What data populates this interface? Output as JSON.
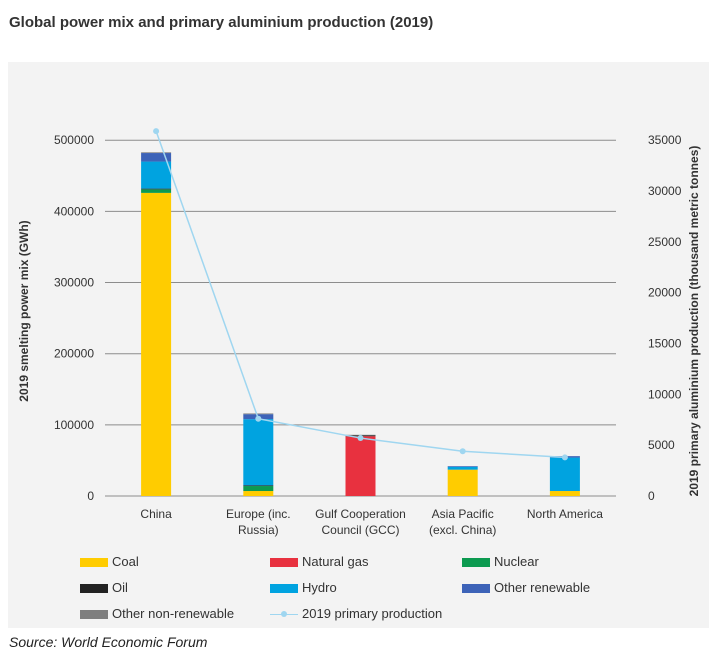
{
  "title": "Global power mix and primary aluminium production (2019)",
  "source": "Source: World Economic Forum",
  "chart_data": {
    "type": "bar",
    "stacked": true,
    "categories": [
      "China",
      "Europe (inc. Russia)",
      "Gulf Cooperation Council (GCC)",
      "Asia Pacific (excl. China)",
      "North America"
    ],
    "category_lines": [
      [
        "China"
      ],
      [
        "Europe (inc.",
        "Russia)"
      ],
      [
        "Gulf Cooperation",
        "Council (GCC)"
      ],
      [
        "Asia Pacific",
        "(excl. China)"
      ],
      [
        "North America"
      ]
    ],
    "ylabel": "2019 smelting power mix (GWh)",
    "y2label": "2019 primary aluminium production (thousand metric tonnes)",
    "ylim": [
      0,
      520000
    ],
    "y2lim": [
      0,
      36400
    ],
    "yticks": [
      0,
      100000,
      200000,
      300000,
      400000,
      500000
    ],
    "y2ticks": [
      0,
      5000,
      10000,
      15000,
      20000,
      25000,
      30000,
      35000
    ],
    "grid": true,
    "series": [
      {
        "name": "Coal",
        "color": "#ffcc00",
        "values": [
          426000,
          7000,
          0,
          37000,
          7000
        ]
      },
      {
        "name": "Natural gas",
        "color": "#e8313f",
        "values": [
          0,
          0,
          84000,
          0,
          0
        ]
      },
      {
        "name": "Nuclear",
        "color": "#0c9a50",
        "values": [
          5000,
          7000,
          0,
          0,
          0
        ]
      },
      {
        "name": "Oil",
        "color": "#222222",
        "values": [
          1000,
          1000,
          1000,
          0,
          0
        ]
      },
      {
        "name": "Hydro",
        "color": "#00a3e0",
        "values": [
          38000,
          93000,
          0,
          4000,
          47000
        ]
      },
      {
        "name": "Other renewable",
        "color": "#3d63b8",
        "values": [
          12000,
          7000,
          0,
          1000,
          2000
        ]
      },
      {
        "name": "Other non-renewable",
        "color": "#7f7f7f",
        "values": [
          1000,
          1000,
          1000,
          0,
          0
        ]
      }
    ],
    "line_series": {
      "name": "2019 primary production",
      "color": "#9fd6f0",
      "axis": "right",
      "values": [
        35900,
        7600,
        5700,
        4400,
        3800
      ]
    }
  }
}
